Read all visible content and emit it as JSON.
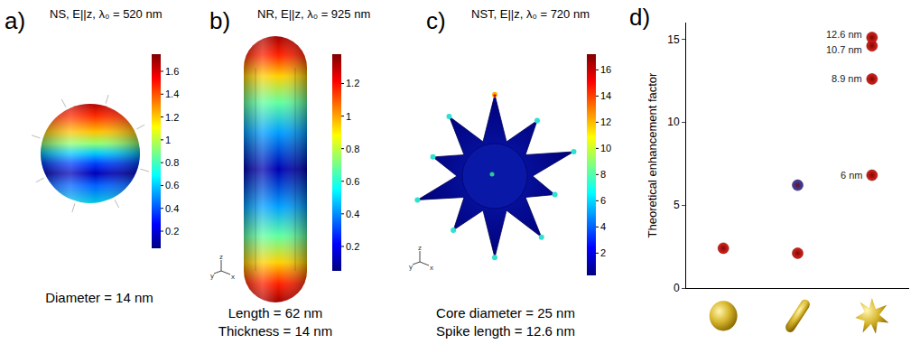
{
  "panels": [
    {
      "letter": "a)",
      "title": "NS, E||z, λ₀ = 520 nm",
      "shape": "sphere",
      "captions": [
        "Diameter = 14 nm"
      ],
      "colorbar": {
        "range": [
          0.05,
          1.75
        ],
        "ticks": [
          0.2,
          0.4,
          0.6,
          0.8,
          1,
          1.2,
          1.4,
          1.6
        ]
      }
    },
    {
      "letter": "b)",
      "title": "NR, E||z, λ₀ = 925 nm",
      "shape": "rod",
      "axes_labels": [
        "y",
        "z",
        "x"
      ],
      "captions": [
        "Length = 62 nm",
        "Thickness = 14 nm"
      ],
      "colorbar": {
        "range": [
          0.05,
          1.38
        ],
        "ticks": [
          0.2,
          0.4,
          0.6,
          0.8,
          1,
          1.2
        ]
      }
    },
    {
      "letter": "c)",
      "title": "NST, E||z, λ₀ = 720 nm",
      "shape": "star",
      "axes_labels": [
        "y",
        "z",
        "x"
      ],
      "captions": [
        "Core diameter = 25 nm",
        "Spike length = 12.6 nm"
      ],
      "colorbar": {
        "range": [
          0.3,
          17.2
        ],
        "ticks": [
          2,
          4,
          6,
          8,
          10,
          12,
          14,
          16
        ]
      }
    }
  ],
  "chart_data": {
    "letter": "d)",
    "type": "scatter",
    "ylabel": "Theoretical enhancement factor",
    "categories": [
      null,
      null,
      null
    ],
    "ylim": [
      0,
      16
    ],
    "yticks": [
      0,
      5,
      10,
      15
    ],
    "grid": false,
    "tick_labels": "y",
    "series": [
      {
        "color": "#e32119",
        "marker": "circle",
        "x": [
          0,
          1,
          2,
          2,
          2,
          2
        ],
        "values": [
          2.4,
          2.1,
          6.8,
          12.6,
          14.6,
          15.1
        ],
        "point_labels": [
          null,
          null,
          "6 nm",
          "8.9 nm",
          "10.7 nm",
          "12.6 nm"
        ]
      },
      {
        "color": "#1e4fd6",
        "marker": "circle",
        "x": [
          1
        ],
        "values": [
          6.2
        ]
      }
    ]
  }
}
